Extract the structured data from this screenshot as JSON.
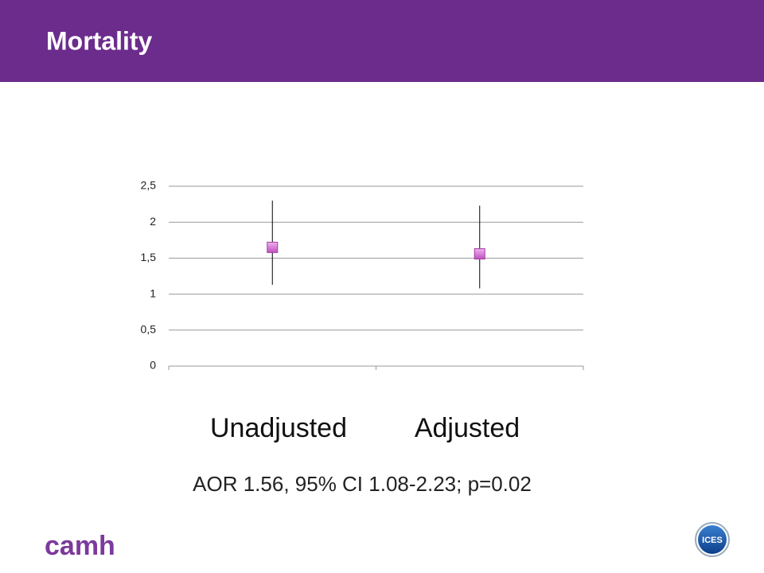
{
  "header": {
    "title": "Mortality"
  },
  "chart_data": {
    "type": "errorbar",
    "categories": [
      "Unadjusted",
      "Adjusted"
    ],
    "values": [
      1.65,
      1.56
    ],
    "low": [
      1.13,
      1.08
    ],
    "high": [
      2.3,
      2.23
    ],
    "color": "#d46cd4",
    "ylim": [
      0,
      2.5
    ],
    "yticks": [
      0,
      {
        "value": 0.5,
        "label": "0,5"
      },
      1,
      {
        "value": 1.5,
        "label": "1,5"
      },
      2,
      {
        "value": 2.5,
        "label": "2,5"
      }
    ],
    "grid": true,
    "annotation": "AOR 1.56, 95% CI 1.08-2.23; p=0.02"
  },
  "footer": {
    "left_logo": "camh",
    "right_logo": "ICES"
  }
}
